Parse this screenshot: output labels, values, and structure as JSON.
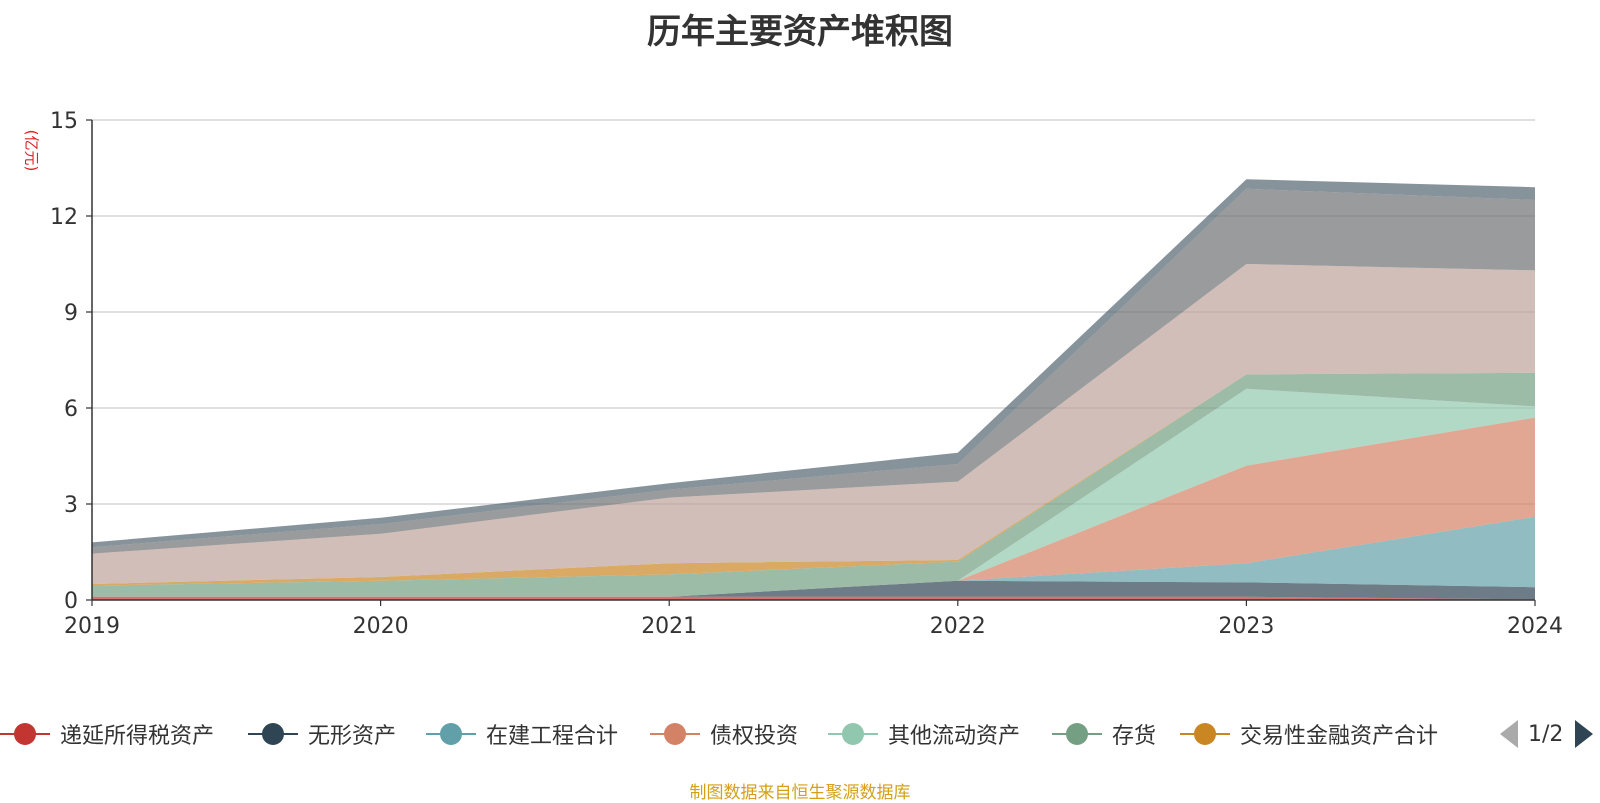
{
  "chart_data": {
    "type": "area",
    "title": "历年主要资产堆积图",
    "ylabel": "(亿元)",
    "categories": [
      "2019",
      "2020",
      "2021",
      "2022",
      "2023",
      "2024"
    ],
    "ylim": [
      0,
      15
    ],
    "yticks": [
      0,
      3,
      6,
      9,
      12,
      15
    ],
    "stacked": true,
    "grid": true,
    "legend_position": "bottom",
    "series": [
      {
        "name": "递延所得税资产",
        "color": "#c23531",
        "values": [
          0.1,
          0.1,
          0.1,
          0.1,
          0.1,
          0.02
        ]
      },
      {
        "name": "无形资产",
        "color": "#2f4554",
        "values": [
          0.0,
          0.0,
          0.0,
          0.5,
          0.45,
          0.38
        ]
      },
      {
        "name": "在建工程合计",
        "color": "#61a0a8",
        "values": [
          0.0,
          0.0,
          0.0,
          0.0,
          0.6,
          2.2
        ]
      },
      {
        "name": "债权投资",
        "color": "#d48265",
        "values": [
          0.0,
          0.0,
          0.0,
          0.0,
          3.05,
          3.1
        ]
      },
      {
        "name": "其他流动资产",
        "color": "#91c7ae",
        "values": [
          0.0,
          0.0,
          0.0,
          0.0,
          2.4,
          0.35
        ]
      },
      {
        "name": "存货",
        "color": "#749f83",
        "values": [
          0.35,
          0.5,
          0.7,
          0.6,
          0.45,
          1.05
        ]
      },
      {
        "name": "交易性金融资产合计",
        "color": "#ca8622",
        "values": [
          0.05,
          0.12,
          0.35,
          0.05,
          0.0,
          0.0
        ]
      },
      {
        "name": "",
        "color": "#bda29a",
        "values": [
          0.95,
          1.35,
          2.05,
          2.45,
          3.45,
          3.2
        ]
      },
      {
        "name": "",
        "color": "#6e7074",
        "values": [
          0.2,
          0.3,
          0.25,
          0.55,
          2.35,
          2.2
        ]
      },
      {
        "name": "",
        "color": "#546570",
        "values": [
          0.15,
          0.2,
          0.2,
          0.35,
          0.3,
          0.4
        ]
      }
    ]
  },
  "legend": {
    "page_text": "1/2"
  },
  "source_note": "制图数据来自恒生聚源数据库"
}
